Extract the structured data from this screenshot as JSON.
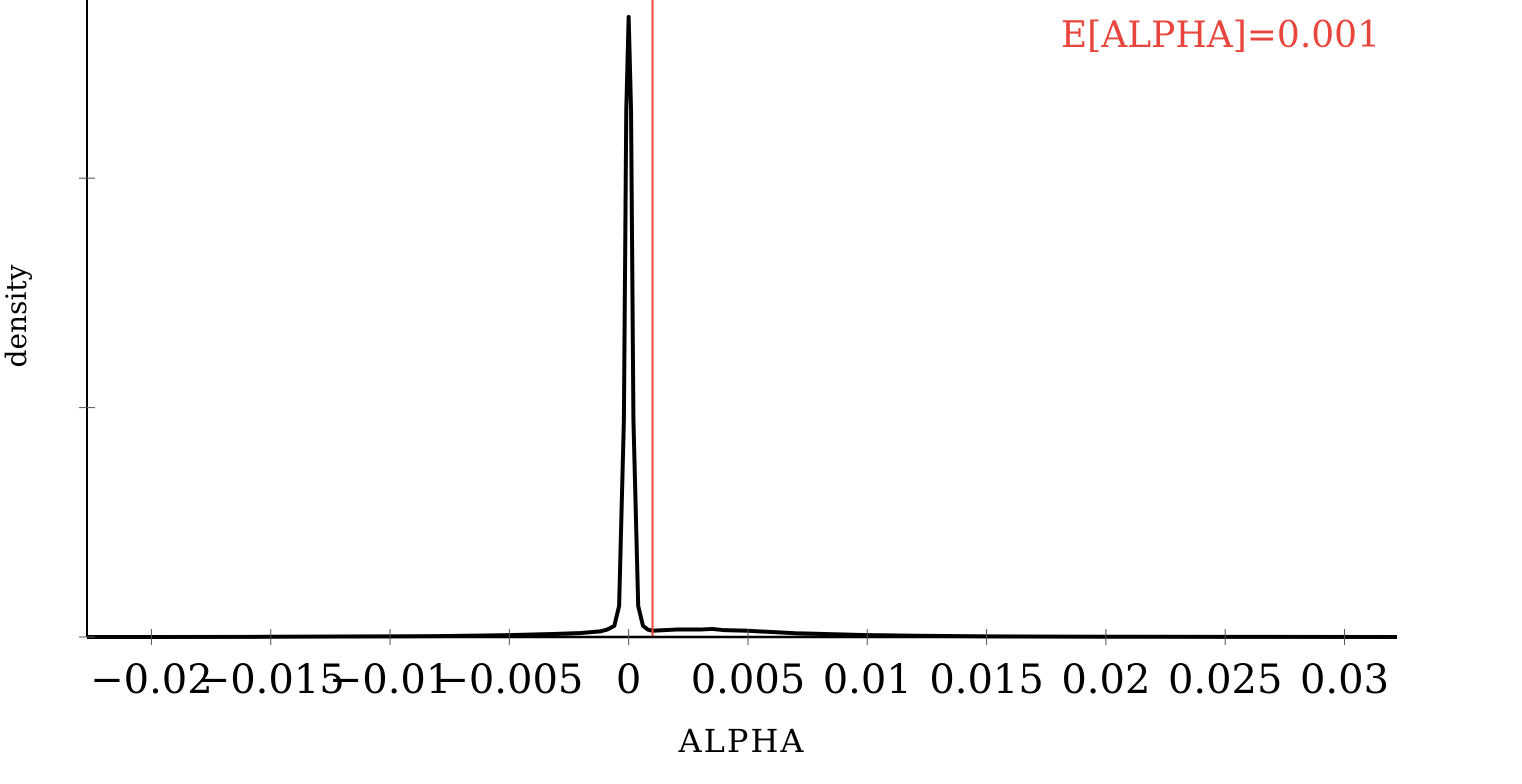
{
  "chart_data": {
    "type": "line",
    "title": "",
    "xlabel": "ALPHA",
    "ylabel": "density",
    "xlim": [
      -0.0227,
      0.0322
    ],
    "ylim": [
      0,
      1.0
    ],
    "grid": false,
    "legend": "none",
    "x_ticks": [
      -0.02,
      -0.015,
      -0.01,
      -0.005,
      0,
      0.005,
      0.01,
      0.015,
      0.02,
      0.025,
      0.03
    ],
    "x_tick_labels": [
      "−0.02",
      "−0.015",
      "−0.01",
      "−0.005",
      "0",
      "0.005",
      "0.01",
      "0.015",
      "0.02",
      "0.025",
      "0.03"
    ],
    "y_ticks": [
      0,
      0.37,
      0.74
    ],
    "series": [
      {
        "color": "#000000",
        "x": [
          -0.0227,
          -0.02,
          -0.015,
          -0.01,
          -0.008,
          -0.006,
          -0.005,
          -0.004,
          -0.003,
          -0.002,
          -0.0015,
          -0.0012,
          -0.0009,
          -0.0006,
          -0.0004,
          -0.0002,
          -0.0001,
          0.0,
          0.0001,
          0.0002,
          0.0004,
          0.0006,
          0.0008,
          0.001,
          0.0015,
          0.002,
          0.003,
          0.0035,
          0.004,
          0.005,
          0.006,
          0.007,
          0.008,
          0.009,
          0.01,
          0.012,
          0.015,
          0.02,
          0.025,
          0.0322
        ],
        "y": [
          0.0,
          0.0,
          0.0003,
          0.001,
          0.0015,
          0.0025,
          0.003,
          0.004,
          0.005,
          0.0065,
          0.008,
          0.009,
          0.012,
          0.018,
          0.05,
          0.35,
          0.85,
          1.0,
          0.85,
          0.35,
          0.05,
          0.018,
          0.012,
          0.01,
          0.011,
          0.012,
          0.012,
          0.013,
          0.011,
          0.01,
          0.008,
          0.006,
          0.005,
          0.004,
          0.003,
          0.002,
          0.001,
          0.0005,
          0.0002,
          0.0
        ]
      }
    ],
    "mean_line": {
      "x": 0.001,
      "color": "#e8453c",
      "label": "E[ALPHA]=0.001"
    }
  }
}
